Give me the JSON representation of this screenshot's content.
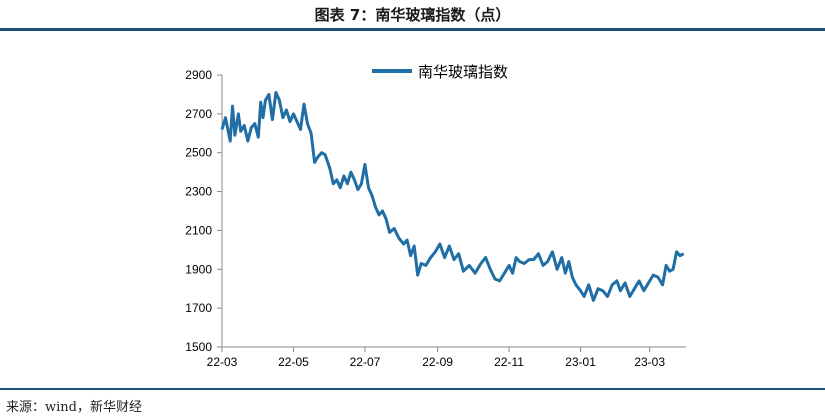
{
  "figure_title": "图表 7：南华玻璃指数（点）",
  "source": "来源：wind，新华财经",
  "colors": {
    "line": "#1f6ea5",
    "axis": "#888888",
    "rule": "#1f4e79"
  },
  "chart_data": {
    "type": "line",
    "title": "",
    "xlabel": "",
    "ylabel": "",
    "ylim": [
      1500,
      2900
    ],
    "yticks": [
      "1500",
      "1700",
      "1900",
      "2100",
      "2300",
      "2500",
      "2700",
      "2900"
    ],
    "xticks": [
      "22-03",
      "22-05",
      "22-07",
      "22-09",
      "22-11",
      "23-01",
      "23-03"
    ],
    "grid": false,
    "legend_position": "top-center",
    "series": [
      {
        "name": "南华玻璃指数",
        "x": [
          "2022-03-01",
          "2022-03-04",
          "2022-03-08",
          "2022-03-10",
          "2022-03-12",
          "2022-03-15",
          "2022-03-17",
          "2022-03-20",
          "2022-03-23",
          "2022-03-26",
          "2022-03-29",
          "2022-04-01",
          "2022-04-03",
          "2022-04-05",
          "2022-04-07",
          "2022-04-10",
          "2022-04-13",
          "2022-04-16",
          "2022-04-19",
          "2022-04-22",
          "2022-04-25",
          "2022-04-28",
          "2022-05-01",
          "2022-05-04",
          "2022-05-07",
          "2022-05-10",
          "2022-05-13",
          "2022-05-16",
          "2022-05-19",
          "2022-05-22",
          "2022-05-25",
          "2022-05-28",
          "2022-06-01",
          "2022-06-04",
          "2022-06-07",
          "2022-06-10",
          "2022-06-13",
          "2022-06-16",
          "2022-06-19",
          "2022-06-22",
          "2022-06-25",
          "2022-06-28",
          "2022-07-01",
          "2022-07-04",
          "2022-07-07",
          "2022-07-10",
          "2022-07-13",
          "2022-07-16",
          "2022-07-19",
          "2022-07-22",
          "2022-07-26",
          "2022-07-30",
          "2022-08-03",
          "2022-08-06",
          "2022-08-09",
          "2022-08-12",
          "2022-08-15",
          "2022-08-18",
          "2022-08-22",
          "2022-08-26",
          "2022-08-30",
          "2022-09-03",
          "2022-09-07",
          "2022-09-11",
          "2022-09-15",
          "2022-09-19",
          "2022-09-23",
          "2022-09-28",
          "2022-10-03",
          "2022-10-08",
          "2022-10-12",
          "2022-10-16",
          "2022-10-20",
          "2022-10-24",
          "2022-10-28",
          "2022-11-01",
          "2022-11-04",
          "2022-11-07",
          "2022-11-10",
          "2022-11-14",
          "2022-11-18",
          "2022-11-22",
          "2022-11-26",
          "2022-11-30",
          "2022-12-04",
          "2022-12-08",
          "2022-12-12",
          "2022-12-16",
          "2022-12-19",
          "2022-12-22",
          "2022-12-25",
          "2022-12-28",
          "2023-01-01",
          "2023-01-04",
          "2023-01-08",
          "2023-01-12",
          "2023-01-16",
          "2023-01-20",
          "2023-01-24",
          "2023-01-28",
          "2023-02-01",
          "2023-02-04",
          "2023-02-08",
          "2023-02-12",
          "2023-02-16",
          "2023-02-20",
          "2023-02-24",
          "2023-02-28",
          "2023-03-04",
          "2023-03-08",
          "2023-03-12",
          "2023-03-15",
          "2023-03-18",
          "2023-03-21",
          "2023-03-24",
          "2023-03-27",
          "2023-03-30"
        ],
        "y": [
          2620,
          2680,
          2560,
          2740,
          2590,
          2700,
          2610,
          2640,
          2560,
          2630,
          2650,
          2580,
          2760,
          2680,
          2770,
          2800,
          2670,
          2810,
          2770,
          2680,
          2720,
          2660,
          2700,
          2660,
          2620,
          2750,
          2650,
          2600,
          2450,
          2480,
          2500,
          2490,
          2420,
          2340,
          2360,
          2320,
          2380,
          2340,
          2400,
          2360,
          2310,
          2340,
          2440,
          2320,
          2280,
          2220,
          2180,
          2200,
          2160,
          2090,
          2110,
          2060,
          2030,
          2050,
          1970,
          2020,
          1870,
          1930,
          1920,
          1960,
          1990,
          2030,
          1960,
          2020,
          1950,
          1980,
          1890,
          1920,
          1880,
          1930,
          1960,
          1900,
          1850,
          1840,
          1880,
          1920,
          1880,
          1960,
          1940,
          1930,
          1950,
          1950,
          1980,
          1920,
          1940,
          1990,
          1900,
          1960,
          1880,
          1940,
          1860,
          1820,
          1790,
          1760,
          1820,
          1740,
          1800,
          1790,
          1760,
          1820,
          1840,
          1790,
          1830,
          1760,
          1800,
          1840,
          1790,
          1830,
          1870,
          1860,
          1820,
          1920,
          1890,
          1900,
          1990,
          1970,
          1980
        ],
        "y_shown": []
      }
    ]
  }
}
